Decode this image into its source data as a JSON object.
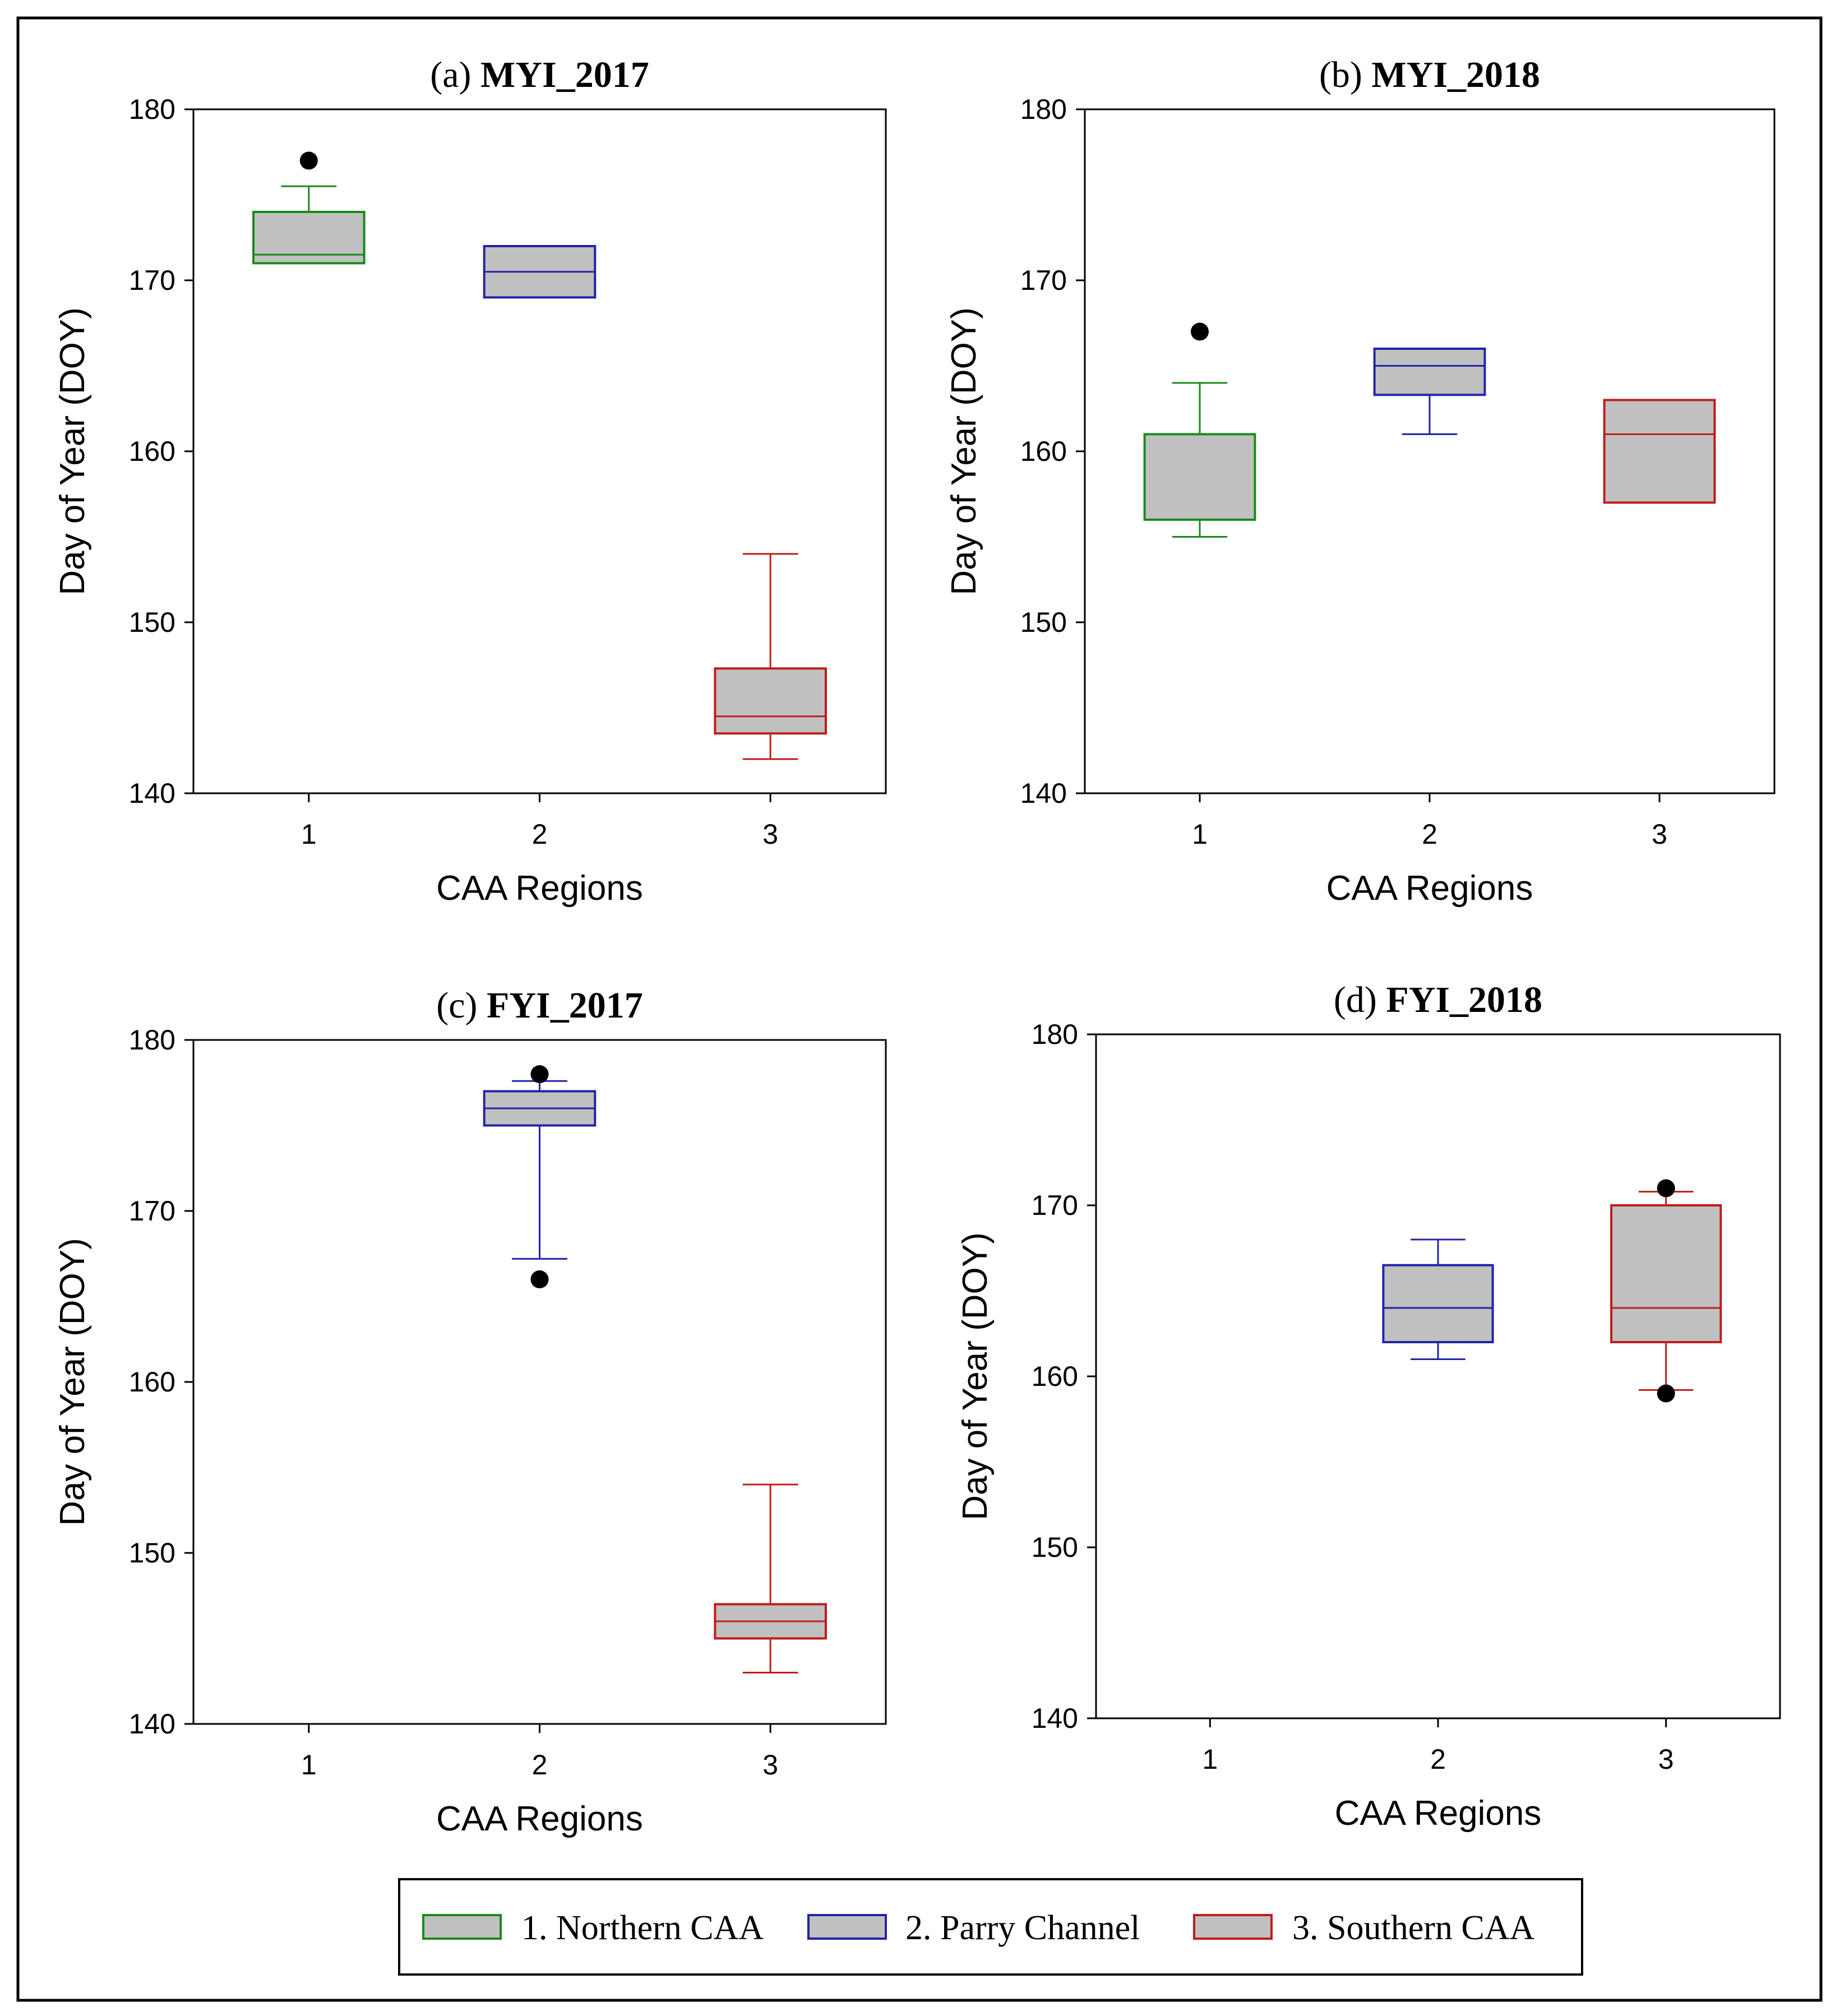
{
  "chart_data": [
    {
      "type": "box",
      "panel": "(a)",
      "title": "MYI_2017",
      "xlabel": "CAA Regions",
      "ylabel": "Day of Year (DOY)",
      "ylim": [
        140,
        180
      ],
      "yticks": [
        "140",
        "150",
        "160",
        "170",
        "180"
      ],
      "categories": [
        "1",
        "2",
        "3"
      ],
      "boxes": [
        {
          "category": "1",
          "q1": 171,
          "median": 171.5,
          "q3": 174,
          "whisker_low": 171,
          "whisker_high": 175.5,
          "outliers": [
            177
          ]
        },
        {
          "category": "2",
          "q1": 169,
          "median": 170.5,
          "q3": 172,
          "whisker_low": 169,
          "whisker_high": 172,
          "outliers": []
        },
        {
          "category": "3",
          "q1": 143.5,
          "median": 144.5,
          "q3": 147.3,
          "whisker_low": 142,
          "whisker_high": 154,
          "outliers": []
        }
      ]
    },
    {
      "type": "box",
      "panel": "(b)",
      "title": "MYI_2018",
      "xlabel": "CAA Regions",
      "ylabel": "Day of Year (DOY)",
      "ylim": [
        140,
        180
      ],
      "yticks": [
        "140",
        "150",
        "160",
        "170",
        "180"
      ],
      "categories": [
        "1",
        "2",
        "3"
      ],
      "boxes": [
        {
          "category": "1",
          "q1": 156,
          "median": 156,
          "q3": 161,
          "whisker_low": 155,
          "whisker_high": 164,
          "outliers": [
            167
          ]
        },
        {
          "category": "2",
          "q1": 163.3,
          "median": 165,
          "q3": 166,
          "whisker_low": 161,
          "whisker_high": 166,
          "outliers": []
        },
        {
          "category": "3",
          "q1": 157,
          "median": 161,
          "q3": 163,
          "whisker_low": 157,
          "whisker_high": 163,
          "outliers": []
        }
      ]
    },
    {
      "type": "box",
      "panel": "(c)",
      "title": "FYI_2017",
      "xlabel": "CAA Regions",
      "ylabel": "Day of Year (DOY)",
      "ylim": [
        140,
        180
      ],
      "yticks": [
        "140",
        "150",
        "160",
        "170",
        "180"
      ],
      "categories": [
        "1",
        "2",
        "3"
      ],
      "boxes": [
        {
          "category": "2",
          "q1": 175,
          "median": 176,
          "q3": 177,
          "whisker_low": 167.2,
          "whisker_high": 177.6,
          "outliers": [
            178,
            166
          ]
        },
        {
          "category": "3",
          "q1": 145,
          "median": 146,
          "q3": 147,
          "whisker_low": 143,
          "whisker_high": 154,
          "outliers": []
        }
      ]
    },
    {
      "type": "box",
      "panel": "(d)",
      "title": "FYI_2018",
      "xlabel": "CAA Regions",
      "ylabel": "Day of Year (DOY)",
      "ylim": [
        140,
        180
      ],
      "yticks": [
        "140",
        "150",
        "160",
        "170",
        "180"
      ],
      "categories": [
        "1",
        "2",
        "3"
      ],
      "boxes": [
        {
          "category": "2",
          "q1": 162,
          "median": 164,
          "q3": 166.5,
          "whisker_low": 161,
          "whisker_high": 168,
          "outliers": []
        },
        {
          "category": "3",
          "q1": 162,
          "median": 164,
          "q3": 170,
          "whisker_low": 159.2,
          "whisker_high": 170.8,
          "outliers": [
            171,
            159
          ]
        }
      ]
    }
  ],
  "legend": [
    {
      "category": "1",
      "label": "1. Northern CAA",
      "color": "#1a8a1a"
    },
    {
      "category": "2",
      "label": "2. Parry Channel",
      "color": "#2323a8"
    },
    {
      "category": "3",
      "label": "3. Southern CAA",
      "color": "#c01c1c"
    }
  ],
  "colors": {
    "box_fill": "#c0c0c0",
    "outlier": "#000000",
    "frame": "#000000"
  }
}
